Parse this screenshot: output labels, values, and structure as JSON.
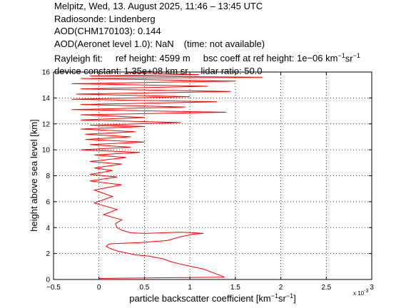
{
  "header": {
    "line1": "Melpitz, Wed, 13. August 2025, 11:46 – 13:45 UTC",
    "line2": "Radiosonde: Lindenberg",
    "line3": "AOD(CHM170103): 0.144",
    "line4_a": "AOD(Aeronet level 1.0): NaN",
    "line4_b": "(time: not available)",
    "line5_a": "Rayleigh fit:",
    "line5_b": "ref height: 4599 m",
    "line5_c": "bsc coeff at ref height: 1e−06 km",
    "line6_a": "device constant: 1.35e+08 km sr",
    "line6_b": "lidar ratio: 50.0"
  },
  "chart_data": {
    "type": "line",
    "xlabel": "particle backscatter coefficient [km",
    "xlabel_unit_tail": "sr",
    "ylabel": "height above sea level [km]",
    "x_multiplier": "x 10",
    "x_multiplier_exp": "-3",
    "xlim": [
      -0.5,
      3.0
    ],
    "ylim": [
      0,
      16
    ],
    "x_ticks": [
      -0.5,
      0,
      0.5,
      1,
      1.5,
      2,
      2.5,
      3
    ],
    "x_tick_labels": [
      "−0.5",
      "0",
      "0.5",
      "1",
      "1.5",
      "2",
      "2.5",
      "3"
    ],
    "y_ticks": [
      0,
      2,
      4,
      6,
      8,
      10,
      12,
      14,
      16
    ],
    "y_tick_labels": [
      "0",
      "2",
      "4",
      "6",
      "8",
      "10",
      "12",
      "14",
      "16"
    ],
    "grid": true,
    "line_color": "#ff0000",
    "series": [
      {
        "x": [
          0.0,
          1.38,
          1.3,
          1.15,
          0.95,
          0.8,
          0.7,
          0.55,
          0.4,
          0.3,
          0.2,
          0.12,
          0.08,
          0.1,
          0.12,
          0.45,
          0.75,
          0.9,
          1.05,
          1.15,
          1.05,
          0.88,
          0.7,
          0.5,
          0.35,
          0.25,
          0.2,
          0.18,
          0.25,
          0.05,
          0.2,
          -0.05,
          0.15,
          -0.05,
          0.25,
          -0.1,
          0.2,
          -0.1,
          0.15,
          -0.05,
          0.25,
          -0.1,
          0.3,
          -0.05,
          0.45,
          -0.2,
          0.35,
          -0.1,
          0.5,
          -0.15,
          0.35,
          -0.15,
          0.4,
          -0.2,
          0.5,
          -0.1,
          0.9,
          -0.2,
          0.5,
          -0.2,
          1.4,
          -0.3,
          0.95,
          -0.2,
          1.3,
          -0.3,
          1.0,
          -0.25,
          1.45,
          -0.2,
          1.2,
          -0.3,
          1.5,
          -0.2,
          1.8,
          -0.1,
          1.1,
          0.3
        ],
        "y": [
          0.08,
          0.18,
          0.4,
          0.8,
          1.1,
          1.35,
          1.6,
          1.8,
          1.9,
          2.05,
          2.2,
          2.4,
          2.55,
          2.7,
          2.75,
          2.85,
          3.0,
          3.3,
          3.5,
          3.55,
          3.6,
          3.65,
          3.6,
          3.55,
          3.6,
          3.8,
          4.0,
          4.3,
          4.6,
          5.0,
          5.4,
          5.9,
          6.4,
          6.9,
          7.3,
          7.6,
          7.9,
          8.1,
          8.4,
          8.6,
          8.9,
          9.1,
          9.4,
          9.6,
          9.8,
          10.0,
          10.2,
          10.4,
          10.6,
          10.8,
          11.0,
          11.2,
          11.4,
          11.6,
          11.8,
          11.9,
          12.1,
          12.3,
          12.5,
          12.7,
          12.9,
          13.1,
          13.3,
          13.5,
          13.7,
          13.9,
          14.1,
          14.3,
          14.5,
          14.7,
          14.9,
          15.1,
          15.3,
          15.5,
          15.6,
          15.7,
          15.8,
          15.95
        ]
      }
    ]
  }
}
